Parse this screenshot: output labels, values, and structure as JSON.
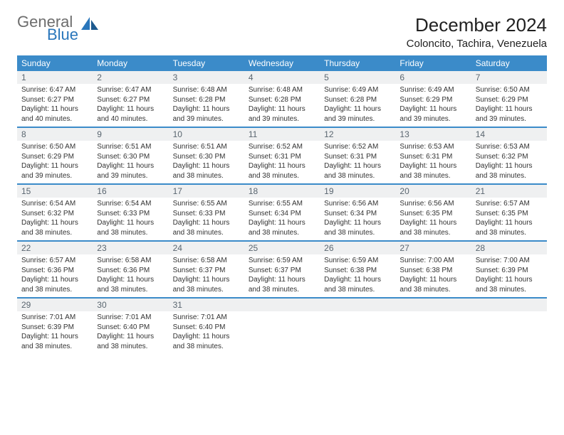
{
  "logo": {
    "line1": "General",
    "line2": "Blue"
  },
  "title": "December 2024",
  "location": "Coloncito, Tachira, Venezuela",
  "colors": {
    "header_bg": "#3b8bc9",
    "header_text": "#ffffff",
    "daynum_bg": "#eff0f1",
    "daynum_text": "#5a6670",
    "border": "#3b8bc9",
    "logo_gray": "#6d6d6d",
    "logo_blue": "#2976bb"
  },
  "days_of_week": [
    "Sunday",
    "Monday",
    "Tuesday",
    "Wednesday",
    "Thursday",
    "Friday",
    "Saturday"
  ],
  "weeks": [
    [
      {
        "n": "1",
        "sr": "Sunrise: 6:47 AM",
        "ss": "Sunset: 6:27 PM",
        "dl": "Daylight: 11 hours and 40 minutes."
      },
      {
        "n": "2",
        "sr": "Sunrise: 6:47 AM",
        "ss": "Sunset: 6:27 PM",
        "dl": "Daylight: 11 hours and 40 minutes."
      },
      {
        "n": "3",
        "sr": "Sunrise: 6:48 AM",
        "ss": "Sunset: 6:28 PM",
        "dl": "Daylight: 11 hours and 39 minutes."
      },
      {
        "n": "4",
        "sr": "Sunrise: 6:48 AM",
        "ss": "Sunset: 6:28 PM",
        "dl": "Daylight: 11 hours and 39 minutes."
      },
      {
        "n": "5",
        "sr": "Sunrise: 6:49 AM",
        "ss": "Sunset: 6:28 PM",
        "dl": "Daylight: 11 hours and 39 minutes."
      },
      {
        "n": "6",
        "sr": "Sunrise: 6:49 AM",
        "ss": "Sunset: 6:29 PM",
        "dl": "Daylight: 11 hours and 39 minutes."
      },
      {
        "n": "7",
        "sr": "Sunrise: 6:50 AM",
        "ss": "Sunset: 6:29 PM",
        "dl": "Daylight: 11 hours and 39 minutes."
      }
    ],
    [
      {
        "n": "8",
        "sr": "Sunrise: 6:50 AM",
        "ss": "Sunset: 6:29 PM",
        "dl": "Daylight: 11 hours and 39 minutes."
      },
      {
        "n": "9",
        "sr": "Sunrise: 6:51 AM",
        "ss": "Sunset: 6:30 PM",
        "dl": "Daylight: 11 hours and 39 minutes."
      },
      {
        "n": "10",
        "sr": "Sunrise: 6:51 AM",
        "ss": "Sunset: 6:30 PM",
        "dl": "Daylight: 11 hours and 38 minutes."
      },
      {
        "n": "11",
        "sr": "Sunrise: 6:52 AM",
        "ss": "Sunset: 6:31 PM",
        "dl": "Daylight: 11 hours and 38 minutes."
      },
      {
        "n": "12",
        "sr": "Sunrise: 6:52 AM",
        "ss": "Sunset: 6:31 PM",
        "dl": "Daylight: 11 hours and 38 minutes."
      },
      {
        "n": "13",
        "sr": "Sunrise: 6:53 AM",
        "ss": "Sunset: 6:31 PM",
        "dl": "Daylight: 11 hours and 38 minutes."
      },
      {
        "n": "14",
        "sr": "Sunrise: 6:53 AM",
        "ss": "Sunset: 6:32 PM",
        "dl": "Daylight: 11 hours and 38 minutes."
      }
    ],
    [
      {
        "n": "15",
        "sr": "Sunrise: 6:54 AM",
        "ss": "Sunset: 6:32 PM",
        "dl": "Daylight: 11 hours and 38 minutes."
      },
      {
        "n": "16",
        "sr": "Sunrise: 6:54 AM",
        "ss": "Sunset: 6:33 PM",
        "dl": "Daylight: 11 hours and 38 minutes."
      },
      {
        "n": "17",
        "sr": "Sunrise: 6:55 AM",
        "ss": "Sunset: 6:33 PM",
        "dl": "Daylight: 11 hours and 38 minutes."
      },
      {
        "n": "18",
        "sr": "Sunrise: 6:55 AM",
        "ss": "Sunset: 6:34 PM",
        "dl": "Daylight: 11 hours and 38 minutes."
      },
      {
        "n": "19",
        "sr": "Sunrise: 6:56 AM",
        "ss": "Sunset: 6:34 PM",
        "dl": "Daylight: 11 hours and 38 minutes."
      },
      {
        "n": "20",
        "sr": "Sunrise: 6:56 AM",
        "ss": "Sunset: 6:35 PM",
        "dl": "Daylight: 11 hours and 38 minutes."
      },
      {
        "n": "21",
        "sr": "Sunrise: 6:57 AM",
        "ss": "Sunset: 6:35 PM",
        "dl": "Daylight: 11 hours and 38 minutes."
      }
    ],
    [
      {
        "n": "22",
        "sr": "Sunrise: 6:57 AM",
        "ss": "Sunset: 6:36 PM",
        "dl": "Daylight: 11 hours and 38 minutes."
      },
      {
        "n": "23",
        "sr": "Sunrise: 6:58 AM",
        "ss": "Sunset: 6:36 PM",
        "dl": "Daylight: 11 hours and 38 minutes."
      },
      {
        "n": "24",
        "sr": "Sunrise: 6:58 AM",
        "ss": "Sunset: 6:37 PM",
        "dl": "Daylight: 11 hours and 38 minutes."
      },
      {
        "n": "25",
        "sr": "Sunrise: 6:59 AM",
        "ss": "Sunset: 6:37 PM",
        "dl": "Daylight: 11 hours and 38 minutes."
      },
      {
        "n": "26",
        "sr": "Sunrise: 6:59 AM",
        "ss": "Sunset: 6:38 PM",
        "dl": "Daylight: 11 hours and 38 minutes."
      },
      {
        "n": "27",
        "sr": "Sunrise: 7:00 AM",
        "ss": "Sunset: 6:38 PM",
        "dl": "Daylight: 11 hours and 38 minutes."
      },
      {
        "n": "28",
        "sr": "Sunrise: 7:00 AM",
        "ss": "Sunset: 6:39 PM",
        "dl": "Daylight: 11 hours and 38 minutes."
      }
    ],
    [
      {
        "n": "29",
        "sr": "Sunrise: 7:01 AM",
        "ss": "Sunset: 6:39 PM",
        "dl": "Daylight: 11 hours and 38 minutes."
      },
      {
        "n": "30",
        "sr": "Sunrise: 7:01 AM",
        "ss": "Sunset: 6:40 PM",
        "dl": "Daylight: 11 hours and 38 minutes."
      },
      {
        "n": "31",
        "sr": "Sunrise: 7:01 AM",
        "ss": "Sunset: 6:40 PM",
        "dl": "Daylight: 11 hours and 38 minutes."
      },
      {
        "n": "",
        "sr": "",
        "ss": "",
        "dl": ""
      },
      {
        "n": "",
        "sr": "",
        "ss": "",
        "dl": ""
      },
      {
        "n": "",
        "sr": "",
        "ss": "",
        "dl": ""
      },
      {
        "n": "",
        "sr": "",
        "ss": "",
        "dl": ""
      }
    ]
  ]
}
